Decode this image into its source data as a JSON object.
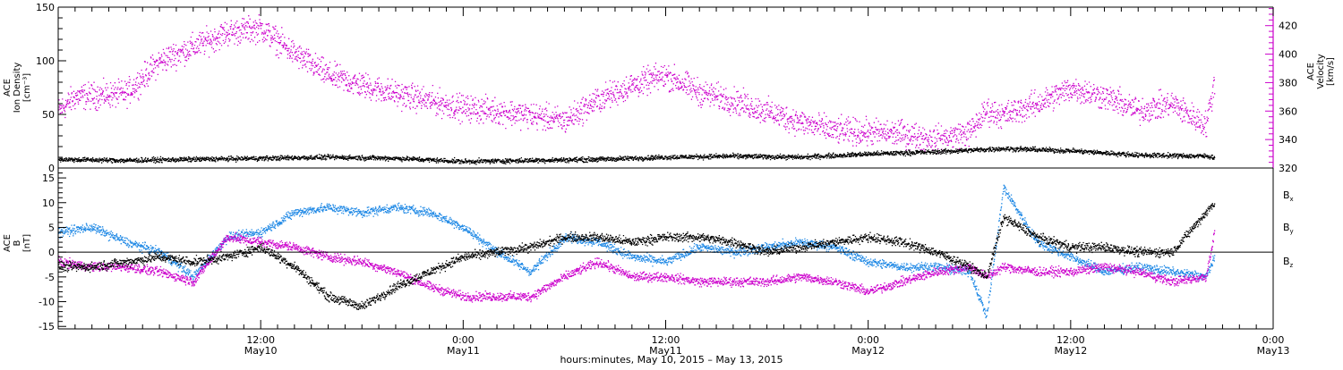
{
  "chart_data": [
    {
      "type": "scatter",
      "panel": "top",
      "left_axis": {
        "label_lines": [
          "ACE",
          "Ion Density",
          "[cm⁻³]"
        ],
        "range": [
          0,
          150
        ],
        "ticks": [
          0,
          50,
          100,
          150
        ],
        "tick_labels": [
          "0",
          "50",
          "100",
          "150"
        ]
      },
      "right_axis": {
        "label_lines": [
          "ACE",
          "Velocity",
          "[km/s]"
        ],
        "range": [
          320,
          433
        ],
        "ticks": [
          320,
          340,
          360,
          380,
          400,
          420
        ],
        "tick_labels": [
          "320",
          "340",
          "360",
          "380",
          "400",
          "420"
        ],
        "color": "#cc00cc"
      },
      "series": [
        {
          "color": "#000000",
          "axis": "left",
          "x_hours": [
            0,
            4,
            8,
            12,
            16,
            20,
            24,
            28,
            32,
            36,
            40,
            44,
            48,
            52,
            56,
            60,
            64,
            68,
            68.5
          ],
          "y": [
            8,
            7,
            8,
            9,
            10,
            9,
            6,
            7,
            8,
            10,
            11,
            10,
            13,
            15,
            18,
            16,
            12,
            11,
            10
          ]
        },
        {
          "color": "#cc00cc",
          "axis": "right",
          "x_hours": [
            0,
            1,
            4,
            6,
            8,
            10,
            12,
            14,
            16,
            18,
            20,
            24,
            26,
            28,
            30,
            32,
            34,
            36,
            38,
            40,
            44,
            46,
            48,
            50,
            52,
            54,
            55,
            56,
            58,
            60,
            62,
            64,
            66,
            68,
            68.5
          ],
          "y": [
            360,
            370,
            372,
            395,
            405,
            415,
            418,
            400,
            385,
            378,
            372,
            362,
            360,
            357,
            353,
            368,
            378,
            385,
            373,
            367,
            352,
            346,
            345,
            344,
            340,
            345,
            360,
            357,
            365,
            376,
            370,
            360,
            365,
            350,
            380
          ]
        }
      ]
    },
    {
      "type": "scatter",
      "panel": "bottom",
      "left_axis": {
        "label_lines": [
          "ACE",
          "B",
          "[nT]"
        ],
        "range": [
          -15.5,
          17
        ],
        "ticks": [
          -15,
          -10,
          -5,
          0,
          5,
          10,
          15
        ],
        "tick_labels": [
          "-15",
          "-10",
          "-5",
          "0",
          "5",
          "10",
          "15"
        ]
      },
      "legend": [
        {
          "text": "B",
          "sub": "x",
          "color": "#000000"
        },
        {
          "text": "B",
          "sub": "y",
          "color": "#1e88e5"
        },
        {
          "text": "B",
          "sub": "z",
          "color": "#cc00cc"
        }
      ],
      "series": [
        {
          "color": "#000000",
          "x_hours": [
            0,
            2,
            4,
            6,
            8,
            10,
            12,
            14,
            16,
            18,
            20,
            22,
            24,
            26,
            28,
            30,
            32,
            34,
            36,
            38,
            40,
            42,
            44,
            46,
            48,
            50,
            52,
            54,
            55,
            56,
            58,
            60,
            62,
            64,
            66,
            68,
            68.5
          ],
          "y": [
            -3,
            -3,
            -2,
            -1,
            -2,
            -1,
            1,
            -3,
            -9,
            -11,
            -7,
            -4,
            -1,
            0,
            1,
            3,
            3,
            2,
            3,
            3,
            2,
            0,
            1,
            2,
            3,
            2,
            0,
            -3,
            -5,
            7,
            3,
            1,
            1,
            0,
            0,
            8,
            10
          ]
        },
        {
          "color": "#1e88e5",
          "x_hours": [
            0,
            2,
            4,
            6,
            8,
            10,
            12,
            14,
            16,
            18,
            20,
            22,
            24,
            26,
            28,
            30,
            32,
            34,
            36,
            38,
            40,
            42,
            44,
            46,
            48,
            50,
            52,
            54,
            55,
            56,
            58,
            60,
            62,
            64,
            66,
            68,
            68.5
          ],
          "y": [
            4,
            5,
            2,
            0,
            -5,
            3,
            4,
            8,
            9,
            8,
            9,
            8,
            5,
            0,
            -4,
            3,
            2,
            -1,
            -2,
            1,
            0,
            1,
            2,
            1,
            -2,
            -3,
            -3,
            -4,
            -13,
            13,
            2,
            -1,
            -4,
            -3,
            -4,
            -5,
            -1
          ]
        },
        {
          "color": "#cc00cc",
          "x_hours": [
            0,
            2,
            4,
            6,
            8,
            10,
            12,
            14,
            16,
            18,
            20,
            22,
            24,
            26,
            28,
            30,
            32,
            34,
            36,
            38,
            40,
            42,
            44,
            46,
            48,
            50,
            52,
            54,
            55,
            56,
            58,
            60,
            62,
            64,
            66,
            68,
            68.5
          ],
          "y": [
            -2,
            -3,
            -3,
            -4,
            -6,
            3,
            2,
            1,
            -1,
            -2,
            -4,
            -7,
            -9,
            -9,
            -9,
            -5,
            -2,
            -5,
            -5,
            -6,
            -6,
            -6,
            -5,
            -6,
            -8,
            -6,
            -4,
            -3,
            -5,
            -3,
            -4,
            -4,
            -3,
            -4,
            -6,
            -5,
            4
          ]
        }
      ]
    }
  ],
  "x_axis": {
    "range_hours": [
      0,
      72
    ],
    "ticks_hours": [
      12,
      24,
      36,
      48,
      60,
      72
    ],
    "tick_labels": [
      {
        "time": "12:00",
        "date": "May10"
      },
      {
        "time": "0:00",
        "date": "May11"
      },
      {
        "time": "12:00",
        "date": "May11"
      },
      {
        "time": "0:00",
        "date": "May12"
      },
      {
        "time": "12:00",
        "date": "May12"
      },
      {
        "time": "0:00",
        "date": "May13"
      }
    ],
    "title": "hours:minutes, May 10, 2015 – May 13, 2015"
  }
}
